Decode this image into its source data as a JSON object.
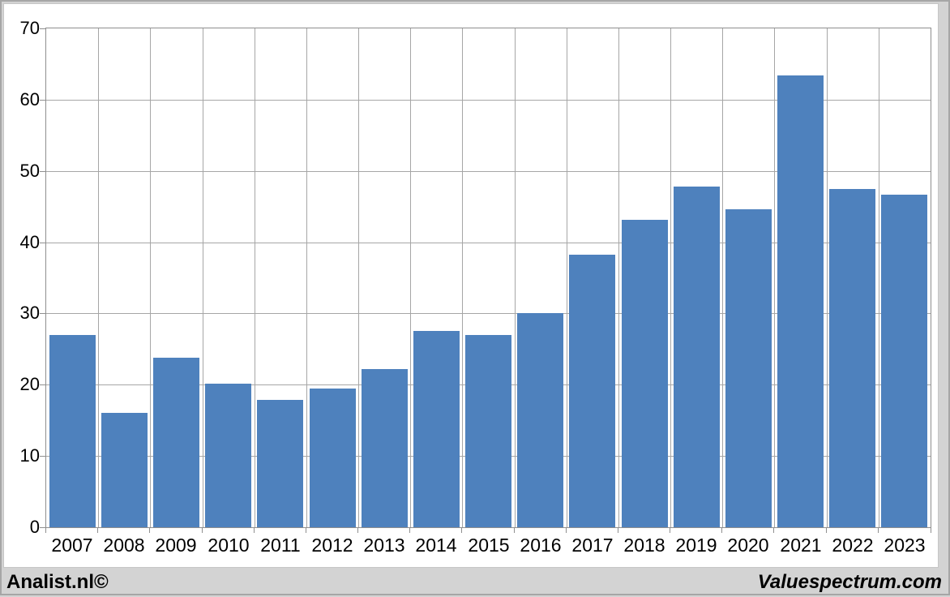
{
  "chart_data": {
    "type": "bar",
    "categories": [
      "2007",
      "2008",
      "2009",
      "2010",
      "2011",
      "2012",
      "2013",
      "2014",
      "2015",
      "2016",
      "2017",
      "2018",
      "2019",
      "2020",
      "2021",
      "2022",
      "2023"
    ],
    "values": [
      27.0,
      16.1,
      23.8,
      20.1,
      17.9,
      19.5,
      22.2,
      27.6,
      27.0,
      30.1,
      38.2,
      43.1,
      47.8,
      44.6,
      63.4,
      47.5,
      46.7
    ],
    "ylim": [
      0,
      70
    ],
    "yticks": [
      0,
      10,
      20,
      30,
      40,
      50,
      60,
      70
    ],
    "grid": "horizontal and vertical gridlines, ticks outside axes",
    "legend": "none",
    "bar_color": "#4e81bd"
  },
  "colors": {
    "bar": "#4e81bd",
    "gridline": "#a6a6a6",
    "plot_border": "#8f8f8f",
    "page_background": "#d3d3d3",
    "panel_background": "#ffffff",
    "text": "#000000"
  },
  "footer": {
    "left_credit": "Analist.nl©",
    "right_credit": "Valuespectrum.com"
  }
}
